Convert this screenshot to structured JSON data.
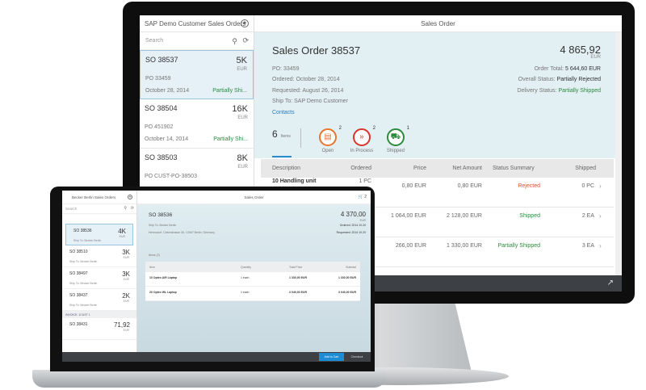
{
  "monitor": {
    "master": {
      "title": "SAP Demo Customer Sales Orders",
      "search_placeholder": "Search",
      "items": [
        {
          "title": "SO 38537",
          "number": "5K",
          "currency": "EUR",
          "po": "PO 33459",
          "date": "October 28, 2014",
          "status": "Partially Shi..."
        },
        {
          "title": "SO 38504",
          "number": "16K",
          "currency": "EUR",
          "po": "PO 451902",
          "date": "October 14, 2014",
          "status": "Partially Shi..."
        },
        {
          "title": "SO 38503",
          "number": "8K",
          "currency": "EUR",
          "po": "PO CUST-PO-38503"
        }
      ]
    },
    "detail": {
      "header": "Sales Order",
      "title": "Sales Order 38537",
      "po": "PO: 33459",
      "ordered": "Ordered: October 28, 2014",
      "requested": "Requested: August 26, 2014",
      "ship_to": "Ship To: SAP Demo Customer",
      "contacts": "Contacts",
      "number": "4 865,92",
      "currency": "EUR",
      "order_total_label": "Order Total:",
      "order_total": "5 644,60 EUR",
      "overall_status_label": "Overall Status:",
      "overall_status": "Partially Rejected",
      "delivery_status_label": "Delivery Status:",
      "delivery_status": "Partially Shipped",
      "tabs": {
        "count": "6",
        "count_label": "Items",
        "items": [
          {
            "label": "Open",
            "badge": "2",
            "color": "#e8762c",
            "icon": "clipboard-icon"
          },
          {
            "label": "In Process",
            "badge": "2",
            "color": "#d9342b",
            "icon": "fast-forward-icon"
          },
          {
            "label": "Shipped",
            "badge": "1",
            "color": "#2b8a3e",
            "icon": "truck-icon"
          }
        ]
      },
      "columns": [
        "Description",
        "Ordered",
        "Price",
        "Net Amount",
        "Status Summary",
        "Shipped"
      ],
      "rows": [
        {
          "description": "10 Handling unit",
          "ordered": "1 PC",
          "price": "0,80 EUR",
          "net": "0,80 EUR",
          "status": "Rejected",
          "status_color": "#d9542b",
          "shipped": "0 PC"
        },
        {
          "price": "1 064,00 EUR",
          "net": "2 128,00 EUR",
          "status": "Shipped",
          "status_color": "#2b8a3e",
          "shipped": "2 EA"
        },
        {
          "price": "266,00 EUR",
          "net": "1 330,00 EUR",
          "status": "Partially Shipped",
          "status_color": "#2b8a3e",
          "shipped": "3 EA"
        }
      ]
    }
  },
  "laptop": {
    "master": {
      "title": "Becker Berlin Sales Orders",
      "search_placeholder": "Search",
      "items": [
        {
          "title": "SO 38536",
          "number": "4K",
          "currency": "EUR",
          "ship": "Ship To: Becker Berlin"
        },
        {
          "title": "SO 38510",
          "number": "3K",
          "currency": "EUR",
          "ship": "Ship To: Becker Berlin"
        },
        {
          "title": "SO 38497",
          "number": "3K",
          "currency": "EUR",
          "ship": "Ship To: Becker Berlin"
        },
        {
          "title": "SO 38437",
          "number": "2K",
          "currency": "EUR",
          "ship": "Ship To: Becker Berlin"
        }
      ],
      "group": "INVOICE: 1CUST 1",
      "last": {
        "title": "SO 38431",
        "number": "71,92",
        "currency": "EUR"
      }
    },
    "detail": {
      "header": "Sales Order",
      "cart_count": "2",
      "title": "SO 38536",
      "ship_to": "Ship To: Becker Berlin",
      "address": "Hennsdorf, Calvinstrasse 36, 13467 Berlin, Germany",
      "number": "4 370,00",
      "currency": "EUR",
      "ordered": "Ordered: 2014.10.20",
      "requested": "Requested: 2014.10.20",
      "items_title": "Items (2)",
      "columns": [
        "Item",
        "Quantity",
        "Total Price",
        "Subtotal"
      ],
      "rows": [
        {
          "item": "10 Optex A/R Laptop",
          "qty": "1 each",
          "total": "1 330,00 EUR",
          "subtotal": "1 330,00 EUR"
        },
        {
          "item": "20 Optex WL Laptop",
          "qty": "1 each",
          "total": "3 040,00 EUR",
          "subtotal": "3 040,00 EUR"
        }
      ]
    },
    "footer": {
      "add_to_cart": "Add to Cart",
      "checkout": "Checkout"
    }
  }
}
